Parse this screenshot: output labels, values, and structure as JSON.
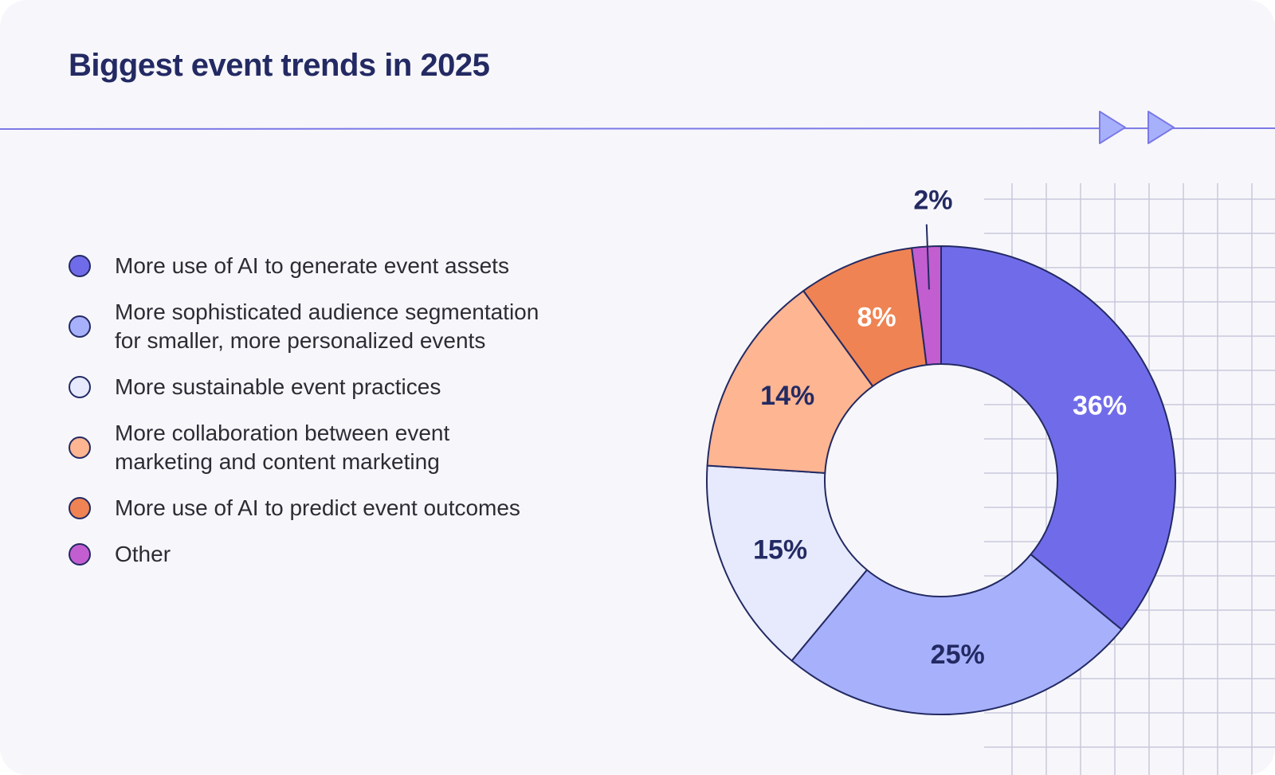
{
  "title": "Biggest event trends in 2025",
  "colors": {
    "ai_assets": "#706ce9",
    "segmentation": "#a7b1fb",
    "sustainable": "#e7eafd",
    "collaboration": "#fdb592",
    "ai_predict": "#ef8353",
    "other": "#c35ed0",
    "outline": "#232a63",
    "accent_line": "#7b79e6",
    "arrow": "#a7b1fb",
    "grid": "#c9c8dc"
  },
  "legend": [
    {
      "label": "More use of AI to generate event assets",
      "color": "#706ce9"
    },
    {
      "label": "More sophisticated audience segmentation\nfor smaller, more personalized events",
      "color": "#a7b1fb"
    },
    {
      "label": "More sustainable event practices",
      "color": "#e7eafd"
    },
    {
      "label": "More collaboration between event\nmarketing and content marketing",
      "color": "#fdb592"
    },
    {
      "label": "More use of AI to predict event outcomes",
      "color": "#ef8353"
    },
    {
      "label": "Other",
      "color": "#c35ed0"
    }
  ],
  "chart_data": {
    "type": "pie",
    "subtype": "donut",
    "title": "Biggest event trends in 2025",
    "categories": [
      "More use of AI to generate event assets",
      "More sophisticated audience segmentation for smaller, more personalized events",
      "More sustainable event practices",
      "More collaboration between event marketing and content marketing",
      "More use of AI to predict event outcomes",
      "Other"
    ],
    "values": [
      36,
      25,
      15,
      14,
      8,
      2
    ],
    "labels": [
      "36%",
      "25%",
      "15%",
      "14%",
      "8%",
      "2%"
    ],
    "colors": [
      "#706ce9",
      "#a7b1fb",
      "#e7eafd",
      "#fdb592",
      "#ef8353",
      "#c35ed0"
    ],
    "label_colors": [
      "#ffffff",
      "#232a63",
      "#232a63",
      "#232a63",
      "#ffffff",
      "#232a63"
    ],
    "unit": "%"
  }
}
